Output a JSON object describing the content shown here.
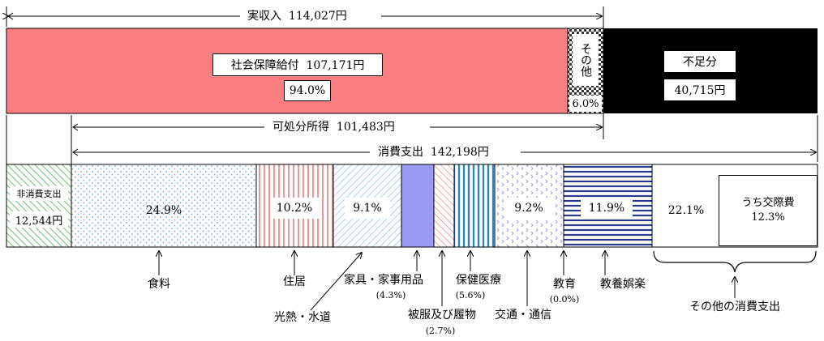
{
  "income": {
    "title": "実収入",
    "title_value": "114,027円",
    "social_security_label": "社会保障給付",
    "social_security_value": "107,171円",
    "social_security_pct": "94.0%",
    "social_security_fraction": 0.94,
    "other_label": "その他",
    "other_pct": "6.0%",
    "deficit_label": "不足分",
    "deficit_value": "40,715円"
  },
  "disposable": {
    "label": "可処分所得",
    "value": "101,483円"
  },
  "consumption": {
    "label": "消費支出",
    "value": "142,198円"
  },
  "non_consumption": {
    "label": "非消費支出",
    "value": "12,544円"
  },
  "categories": [
    {
      "key": "food",
      "label": "食料",
      "pct": "24.9%"
    },
    {
      "key": "housing",
      "label": "住居",
      "pct": "10.2%"
    },
    {
      "key": "utilities",
      "label": "光熱・水道",
      "pct": "9.1%"
    },
    {
      "key": "furniture",
      "label": "家具・家事用品",
      "pct": "(4.3%)"
    },
    {
      "key": "clothing",
      "label": "被服及び履物",
      "pct": "(2.7%)"
    },
    {
      "key": "medical",
      "label": "保健医療",
      "pct": "(5.6%)"
    },
    {
      "key": "transport",
      "label": "交通・通信",
      "pct": "9.2%"
    },
    {
      "key": "education",
      "label": "教育",
      "pct": "(0.0%)"
    },
    {
      "key": "recreation",
      "label": "教養娯楽",
      "pct": "11.9%"
    },
    {
      "key": "other",
      "label": "その他の消費支出",
      "pct": "22.1%"
    }
  ],
  "social_expense": {
    "label": "うち交際費",
    "pct": "12.3%"
  },
  "colors": {
    "social_security": "#fb7f80",
    "deficit": "#000000",
    "furniture": "#9a9af4"
  }
}
